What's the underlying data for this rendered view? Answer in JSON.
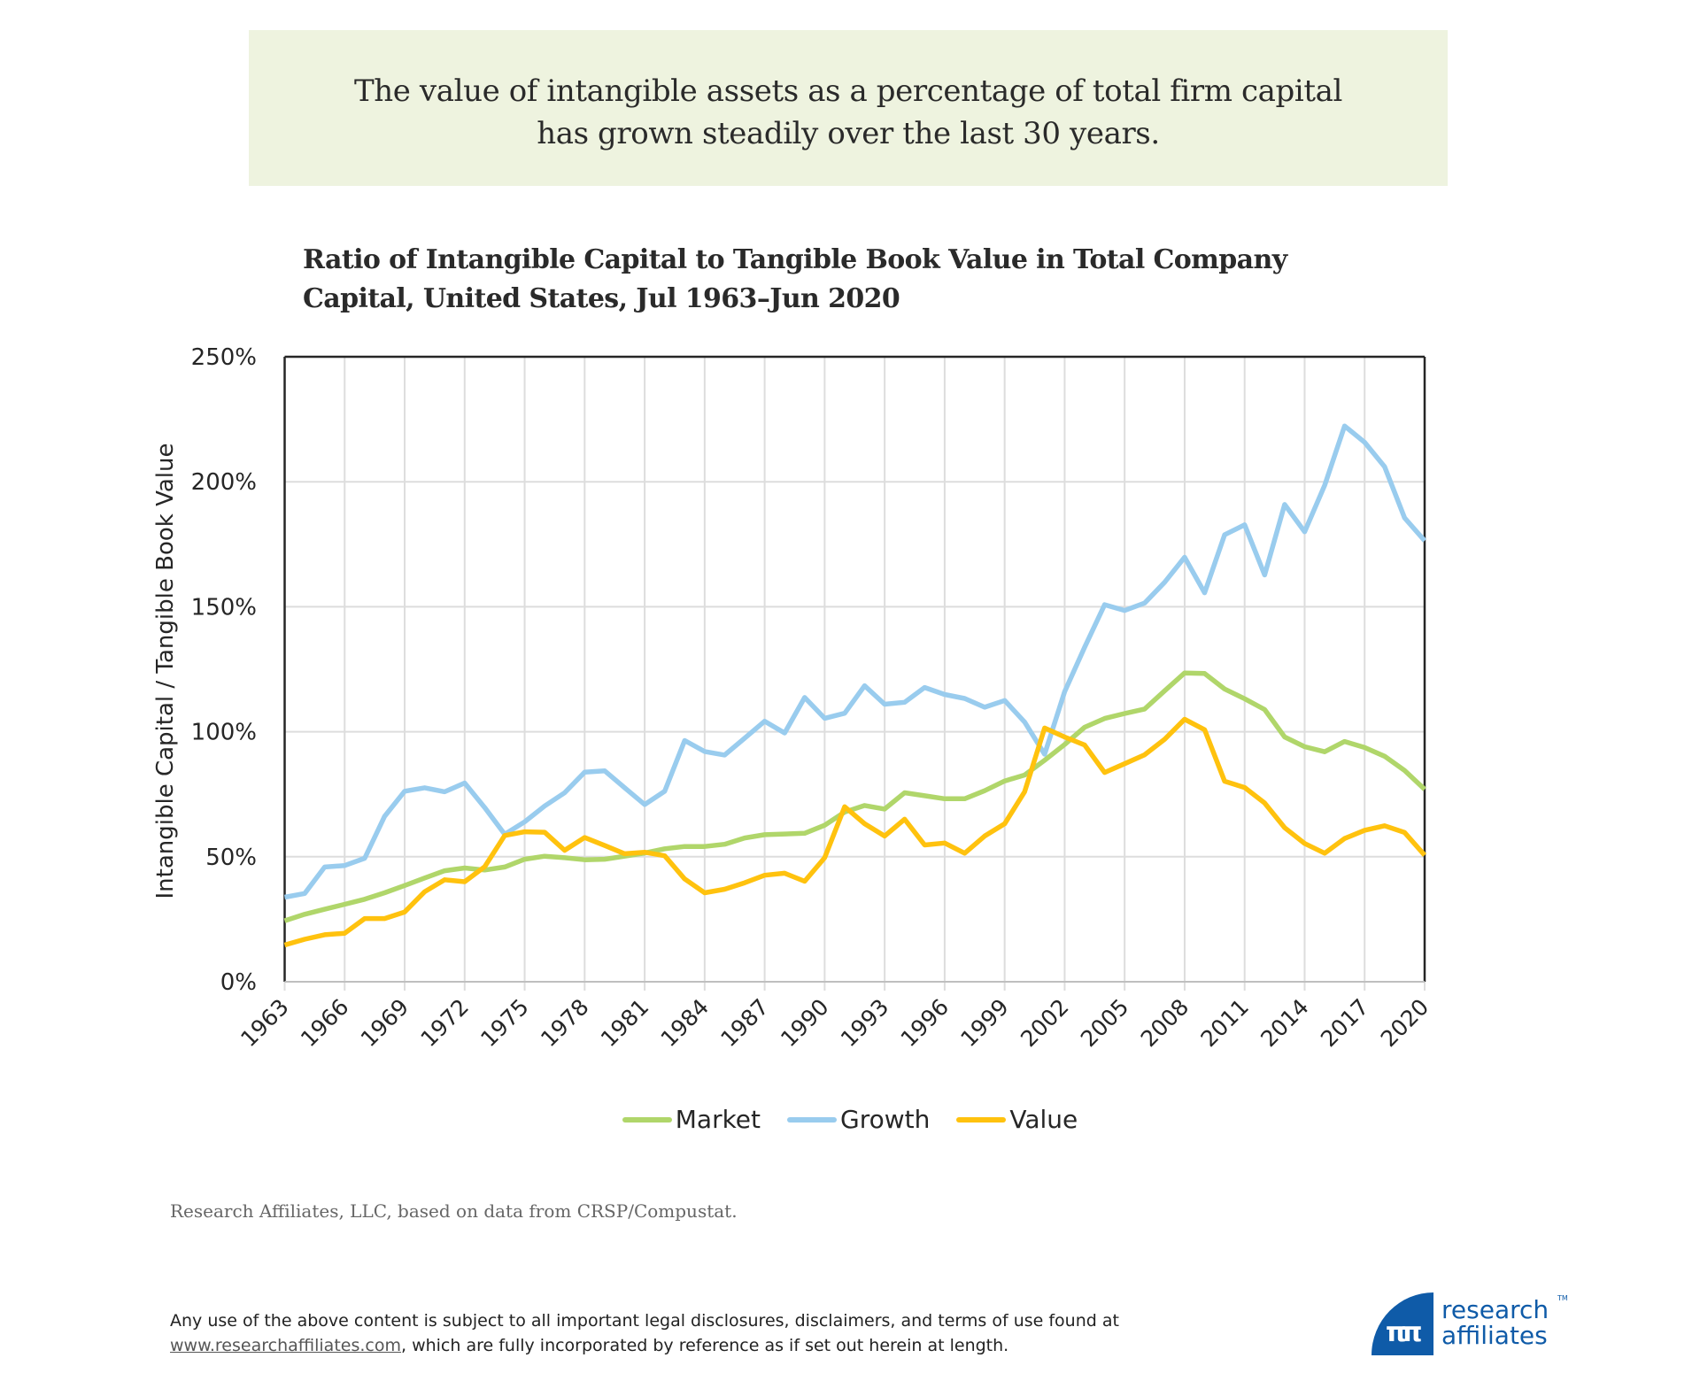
{
  "banner": {
    "line1": "The value of intangible assets as a percentage of total firm capital",
    "line2": "has grown steadily over the last 30 years."
  },
  "chart_data": {
    "type": "line",
    "title": "Ratio of Intangible Capital to Tangible Book Value in Total Company Capital, United States, Jul 1963–Jun 2020",
    "title_lines": [
      "Ratio of Intangible Capital to Tangible Book Value in Total Company",
      "Capital, United States, Jul 1963–Jun 2020"
    ],
    "xlabel": "",
    "ylabel": "Intangible Capital / Tangible Book Value",
    "ylim": [
      0,
      250
    ],
    "yticks": [
      0,
      50,
      100,
      150,
      200,
      250
    ],
    "ytick_labels": [
      "0%",
      "50%",
      "100%",
      "150%",
      "200%",
      "250%"
    ],
    "xlim": [
      1963,
      2020
    ],
    "xticks": [
      1963,
      1966,
      1969,
      1972,
      1975,
      1978,
      1981,
      1984,
      1987,
      1990,
      1993,
      1996,
      1999,
      2002,
      2005,
      2008,
      2011,
      2014,
      2017,
      2020
    ],
    "xtick_labels": [
      "1963",
      "1966",
      "1969",
      "1972",
      "1975",
      "1978",
      "1981",
      "1984",
      "1987",
      "1990",
      "1993",
      "1996",
      "1999",
      "2002",
      "2005",
      "2008",
      "2011",
      "2014",
      "2017",
      "2020"
    ],
    "grid": true,
    "legend_position": "bottom-center",
    "x": [
      1963,
      1964,
      1965,
      1966,
      1967,
      1968,
      1969,
      1970,
      1971,
      1972,
      1973,
      1974,
      1975,
      1976,
      1977,
      1978,
      1979,
      1980,
      1981,
      1982,
      1983,
      1984,
      1985,
      1986,
      1987,
      1988,
      1989,
      1990,
      1991,
      1992,
      1993,
      1994,
      1995,
      1996,
      1997,
      1998,
      1999,
      2000,
      2001,
      2002,
      2003,
      2004,
      2005,
      2006,
      2007,
      2008,
      2009,
      2010,
      2011,
      2012,
      2013,
      2014,
      2015,
      2016,
      2017,
      2018,
      2019,
      2020
    ],
    "series": [
      {
        "name": "Market",
        "color": "#b0d66a",
        "values": [
          24.4,
          27,
          29,
          31,
          33,
          35.6,
          38.5,
          41.5,
          44.4,
          45.5,
          44.7,
          45.9,
          49,
          50.2,
          49.6,
          48.8,
          49,
          50.2,
          51.5,
          53.2,
          54.1,
          54.1,
          55,
          57.5,
          58.8,
          59.1,
          59.4,
          62.6,
          67.9,
          70.5,
          69.1,
          75.6,
          74.4,
          73.2,
          73.2,
          76.4,
          80.3,
          82.7,
          88.6,
          94.9,
          101.8,
          105.3,
          107.3,
          109.1,
          116.4,
          123.5,
          123.3,
          117.1,
          113.2,
          108.9,
          97.9,
          94,
          92,
          96.1,
          93.7,
          90.2,
          84.5,
          77
        ]
      },
      {
        "name": "Growth",
        "color": "#99ccee",
        "values": [
          33.8,
          35.3,
          45.9,
          46.5,
          49.4,
          66.2,
          76.2,
          77.6,
          76,
          79.5,
          69.7,
          59,
          64,
          70.3,
          75.6,
          83.8,
          84.4,
          77.6,
          70.9,
          76.2,
          96.5,
          92.1,
          90.7,
          97.4,
          104.2,
          99.5,
          113.7,
          105.4,
          107.4,
          118.4,
          111,
          111.8,
          117.7,
          114.9,
          113.3,
          109.8,
          112.5,
          103.9,
          91,
          116,
          133.8,
          150.8,
          148.5,
          151.5,
          159.8,
          169.8,
          155.6,
          178.8,
          182.8,
          162.7,
          190.9,
          180,
          198.6,
          222.3,
          215.8,
          206,
          185.5,
          176.4
        ]
      },
      {
        "name": "Value",
        "color": "#ffc20e",
        "values": [
          14.7,
          17,
          18.8,
          19.4,
          25.3,
          25.3,
          27.9,
          36,
          40.8,
          40,
          46,
          58.5,
          60,
          59.8,
          52.6,
          57.7,
          54.5,
          51.2,
          51.8,
          50.4,
          41.1,
          35.6,
          37,
          39.6,
          42.6,
          43.4,
          40.2,
          49.6,
          70,
          63.2,
          58.3,
          65,
          54.7,
          55.5,
          51.4,
          58.3,
          63.2,
          76,
          101.5,
          97.9,
          94.7,
          83.7,
          87.2,
          90.8,
          97,
          105,
          100.8,
          80.2,
          77.7,
          71.5,
          61.6,
          55.3,
          51.4,
          57.3,
          60.6,
          62.4,
          59.7,
          50.6
        ]
      }
    ]
  },
  "source": "Research Affiliates, LLC, based on data from CRSP/Compustat.",
  "disclaimer": {
    "line1": "Any use of the above content is subject to all important legal disclosures, disclaimers, and terms of use found at",
    "link": "www.researchaffiliates.com",
    "line2_rest": ", which are fully incorporated by reference as if set out herein at length."
  },
  "logo": {
    "glyph": "ππ",
    "line1": "research",
    "line2": "affiliates",
    "tm": "TM",
    "brand_color": "#0f5ba8"
  }
}
